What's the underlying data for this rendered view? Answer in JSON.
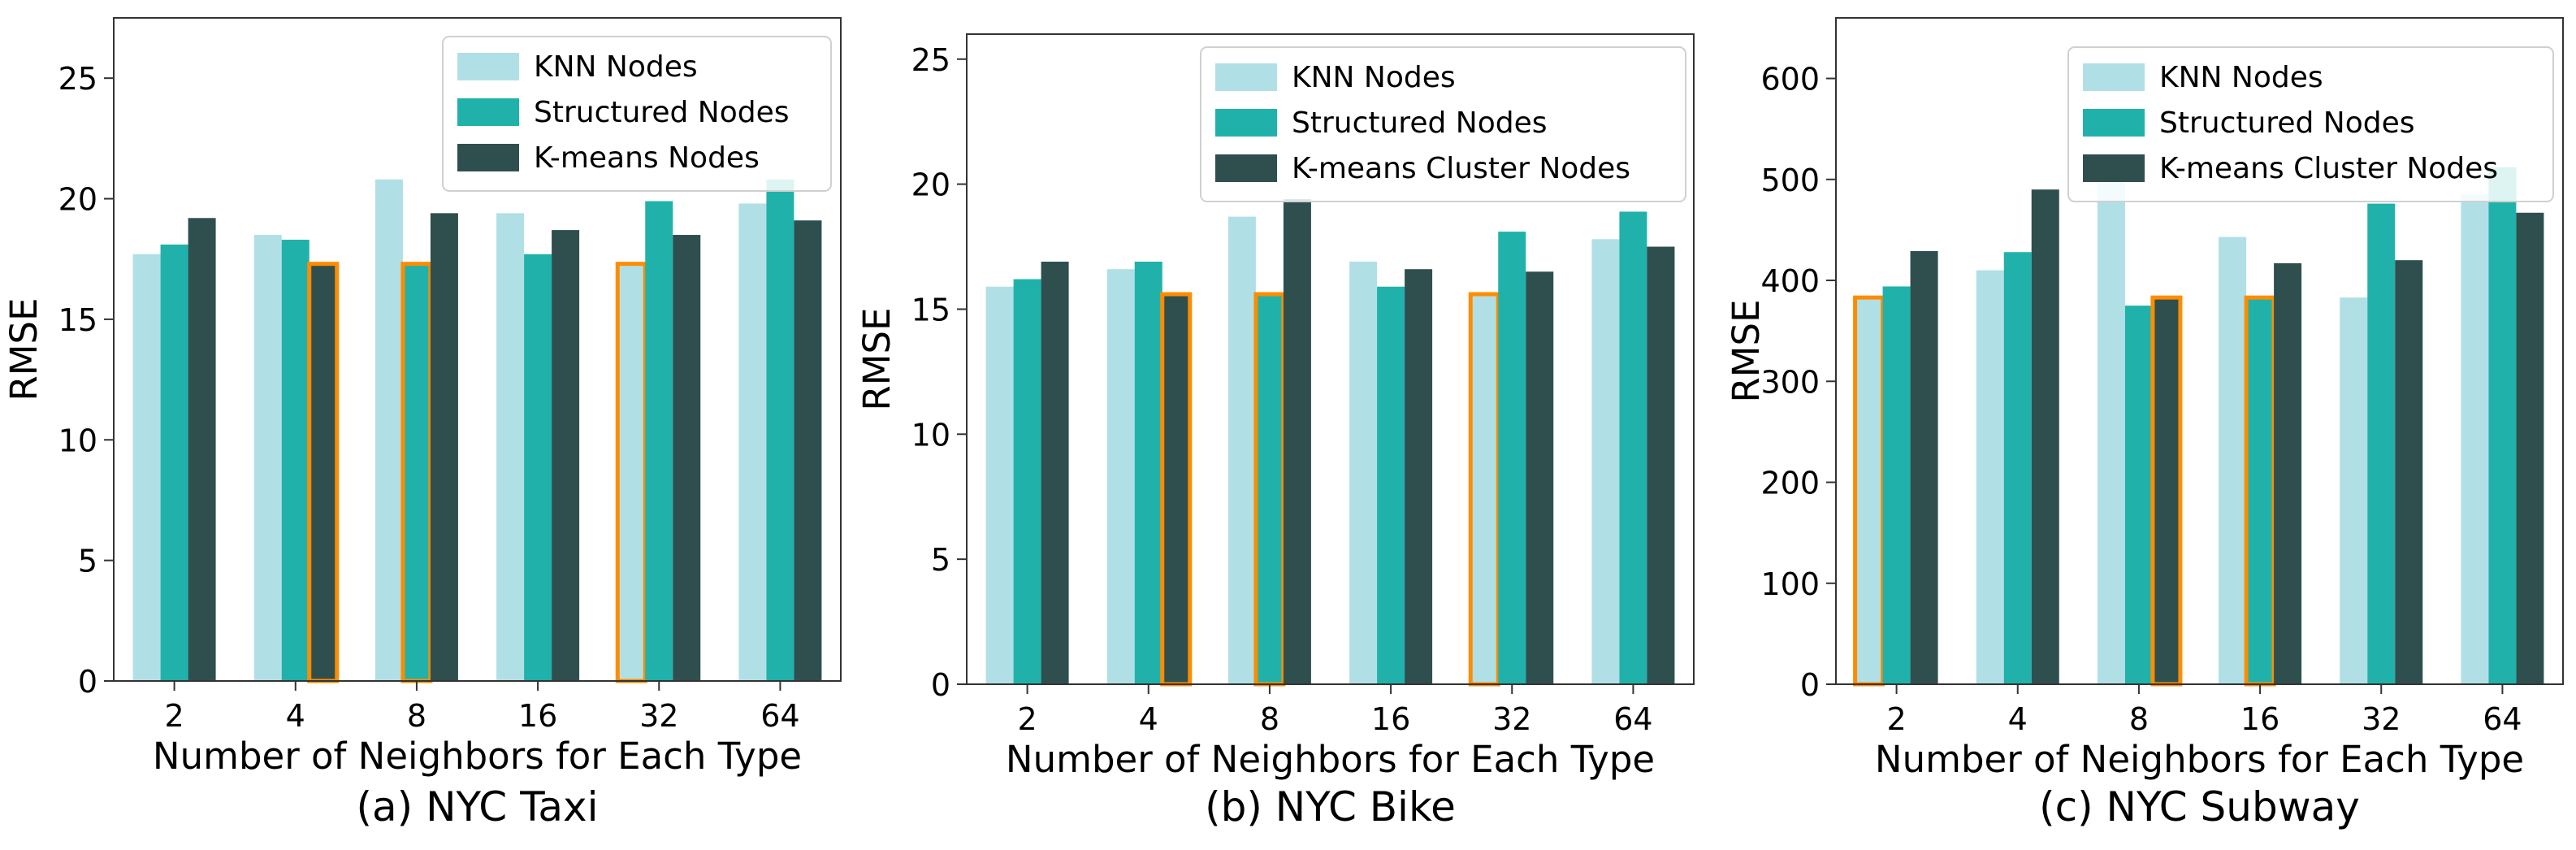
{
  "colors": {
    "knn": "#b0e0e6",
    "structured": "#20b2aa",
    "kmeans": "#2f4f4f",
    "highlight": "#ff8c00",
    "axis": "#333333"
  },
  "chart_data": [
    {
      "type": "bar",
      "caption": "(a) NYC Taxi",
      "xlabel": "Number of Neighbors for Each Type",
      "ylabel": "RMSE",
      "categories": [
        "2",
        "4",
        "8",
        "16",
        "32",
        "64"
      ],
      "ylim": [
        0,
        27.5
      ],
      "yticks": [
        0,
        5,
        10,
        15,
        20,
        25
      ],
      "legend_position": "top-right",
      "grid": false,
      "series": [
        {
          "name": "KNN Nodes",
          "color_key": "knn",
          "values": [
            17.7,
            18.5,
            20.8,
            19.4,
            17.3,
            19.8
          ],
          "highlight": [
            false,
            false,
            false,
            false,
            true,
            false
          ]
        },
        {
          "name": "Structured Nodes",
          "color_key": "structured",
          "values": [
            18.1,
            18.3,
            17.3,
            17.7,
            19.9,
            20.8
          ],
          "highlight": [
            false,
            false,
            true,
            false,
            false,
            false
          ]
        },
        {
          "name": "K-means Nodes",
          "color_key": "kmeans",
          "values": [
            19.2,
            17.3,
            19.4,
            18.7,
            18.5,
            19.1
          ],
          "highlight": [
            false,
            true,
            false,
            false,
            false,
            false
          ]
        }
      ]
    },
    {
      "type": "bar",
      "caption": "(b) NYC Bike",
      "xlabel": "Number of Neighbors for Each Type",
      "ylabel": "RMSE",
      "categories": [
        "2",
        "4",
        "8",
        "16",
        "32",
        "64"
      ],
      "ylim": [
        0,
        26
      ],
      "yticks": [
        0,
        5,
        10,
        15,
        20,
        25
      ],
      "legend_position": "top-right",
      "grid": false,
      "series": [
        {
          "name": "KNN Nodes",
          "color_key": "knn",
          "values": [
            15.9,
            16.6,
            18.7,
            16.9,
            15.6,
            17.8
          ],
          "highlight": [
            false,
            false,
            false,
            false,
            true,
            false
          ]
        },
        {
          "name": "Structured Nodes",
          "color_key": "structured",
          "values": [
            16.2,
            16.9,
            15.6,
            15.9,
            18.1,
            18.9
          ],
          "highlight": [
            false,
            false,
            true,
            false,
            false,
            false
          ]
        },
        {
          "name": "K-means Cluster Nodes",
          "color_key": "kmeans",
          "values": [
            16.9,
            15.6,
            19.4,
            16.6,
            16.5,
            17.5
          ],
          "highlight": [
            false,
            true,
            false,
            false,
            false,
            false
          ]
        }
      ]
    },
    {
      "type": "bar",
      "caption": "(c) NYC Subway",
      "xlabel": "Number of Neighbors for Each Type",
      "ylabel": "RMSE",
      "categories": [
        "2",
        "4",
        "8",
        "16",
        "32",
        "64"
      ],
      "ylim": [
        0,
        660
      ],
      "yticks": [
        0,
        100,
        200,
        300,
        400,
        500,
        600
      ],
      "legend_position": "top-right",
      "grid": false,
      "series": [
        {
          "name": "KNN Nodes",
          "color_key": "knn",
          "values": [
            383,
            410,
            515,
            443,
            383,
            485
          ],
          "highlight": [
            true,
            false,
            false,
            false,
            false,
            false
          ]
        },
        {
          "name": "Structured Nodes",
          "color_key": "structured",
          "values": [
            394,
            428,
            375,
            383,
            476,
            512
          ],
          "highlight": [
            false,
            false,
            false,
            true,
            false,
            false
          ]
        },
        {
          "name": "K-means Cluster Nodes",
          "color_key": "kmeans",
          "values": [
            429,
            490,
            383,
            417,
            420,
            467
          ],
          "highlight": [
            false,
            false,
            true,
            false,
            false,
            false
          ]
        }
      ]
    }
  ]
}
